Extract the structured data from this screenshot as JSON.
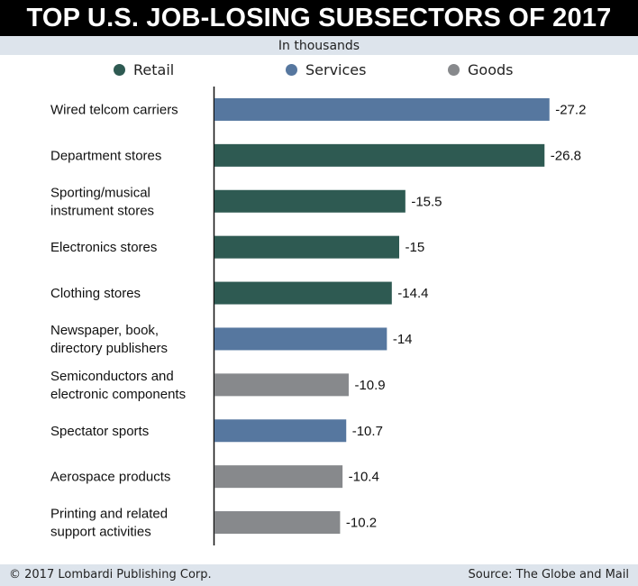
{
  "title": "TOP U.S. JOB-LOSING SUBSECTORS OF 2017",
  "subtitle": "In thousands",
  "footer": {
    "copyright": "© 2017 Lombardi Publishing Corp.",
    "source": "Source: The Globe and Mail"
  },
  "colors": {
    "Retail": "#2e5a52",
    "Services": "#56779f",
    "Goods": "#87898c"
  },
  "chart_data": {
    "type": "bar",
    "orientation": "horizontal",
    "title": "TOP U.S. JOB-LOSING SUBSECTORS OF 2017",
    "subtitle": "In thousands",
    "legend": {
      "placement": "top",
      "entries": [
        "Retail",
        "Services",
        "Goods"
      ]
    },
    "categories": [
      [
        "Wired telcom carriers"
      ],
      [
        "Department stores"
      ],
      [
        "Sporting/musical",
        "instrument stores"
      ],
      [
        "Electronics stores"
      ],
      [
        "Clothing stores"
      ],
      [
        "Newspaper, book,",
        "directory publishers"
      ],
      [
        "Semiconductors and",
        "electronic components"
      ],
      [
        "Spectator sports"
      ],
      [
        "Aerospace products"
      ],
      [
        "Printing and related",
        "support activities"
      ]
    ],
    "values": [
      -27.2,
      -26.8,
      -15.5,
      -15,
      -14.4,
      -14,
      -10.9,
      -10.7,
      -10.4,
      -10.2
    ],
    "value_labels": [
      "-27.2",
      "-26.8",
      "-15.5",
      "-15",
      "-14.4",
      "-14",
      "-10.9",
      "-10.7",
      "-10.4",
      "-10.2"
    ],
    "groups": [
      "Services",
      "Retail",
      "Retail",
      "Retail",
      "Retail",
      "Services",
      "Goods",
      "Services",
      "Goods",
      "Goods"
    ],
    "xlim": [
      0,
      -30
    ],
    "grid": false
  }
}
